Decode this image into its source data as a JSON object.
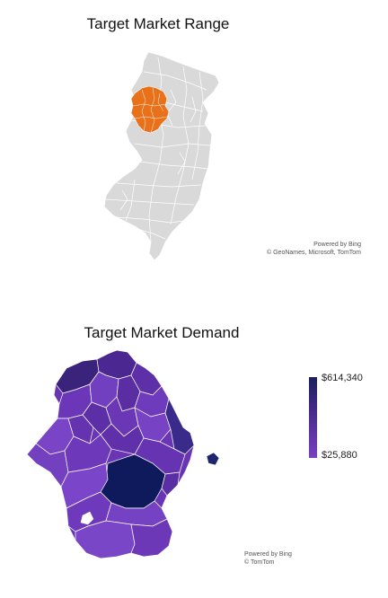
{
  "range_map": {
    "title": "Target Market Range",
    "attribution_line1": "Powered by Bing",
    "attribution_line2": "© GeoNames, Microsoft, TomTom",
    "colors": {
      "land": "#d9d9d9",
      "border": "#ffffff",
      "highlight": "#e8711a"
    }
  },
  "demand_map": {
    "title": "Target Market Demand",
    "attribution_line1": "Powered by Bing",
    "attribution_line2": "© TomTom",
    "legend": {
      "max_label": "$614,340",
      "min_label": "$25,880",
      "max_color": "#1b1f5e",
      "min_color": "#7a3fc4"
    }
  }
}
